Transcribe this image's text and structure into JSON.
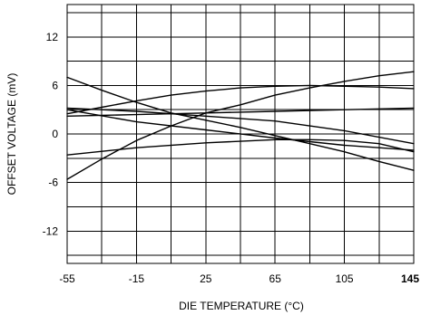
{
  "chart_data": {
    "type": "line",
    "xlabel": "DIE TEMPERATURE (°C)",
    "ylabel": "OFFSET VOLTAGE (mV)",
    "xlim": [
      -55,
      145
    ],
    "ylim": [
      -16,
      16
    ],
    "x_ticks": [
      "-55",
      "-15",
      "25",
      "65",
      "105",
      "145"
    ],
    "y_ticks": [
      "12",
      "6",
      "0",
      "-6",
      "-12"
    ],
    "grid": true,
    "series": [
      {
        "x": [
          -55,
          -35,
          -15,
          5,
          25,
          45,
          65,
          85,
          105,
          125,
          145
        ],
        "y": [
          -5.6,
          -3.1,
          -0.8,
          1.0,
          2.6,
          3.6,
          4.8,
          5.7,
          6.5,
          7.2,
          7.7
        ]
      },
      {
        "x": [
          -55,
          -35,
          -15,
          5,
          25,
          45,
          65,
          85,
          105,
          125,
          145
        ],
        "y": [
          2.5,
          3.3,
          4.1,
          4.8,
          5.3,
          5.7,
          5.9,
          6.0,
          5.9,
          5.8,
          5.6
        ]
      },
      {
        "x": [
          -55,
          -15,
          25,
          65,
          105,
          145
        ],
        "y": [
          2.2,
          2.4,
          2.6,
          2.8,
          3.0,
          3.2
        ]
      },
      {
        "x": [
          -55,
          -15,
          25,
          65,
          105,
          145
        ],
        "y": [
          3.2,
          2.8,
          2.2,
          1.6,
          0.4,
          -1.2
        ]
      },
      {
        "x": [
          -55,
          -35,
          -15,
          5,
          25,
          45,
          65,
          85,
          105,
          125,
          145
        ],
        "y": [
          7.0,
          5.4,
          3.9,
          2.6,
          1.7,
          0.8,
          -0.2,
          -1.2,
          -2.2,
          -3.4,
          -4.5
        ]
      },
      {
        "x": [
          -55,
          -15,
          25,
          65,
          85,
          105,
          125,
          145
        ],
        "y": [
          -2.6,
          -1.7,
          -1.1,
          -0.7,
          -0.7,
          -0.8,
          -1.2,
          -2.2
        ]
      },
      {
        "x": [
          -55,
          -15,
          25,
          65,
          105,
          145
        ],
        "y": [
          3.0,
          1.5,
          0.5,
          -0.5,
          -1.4,
          -2.0
        ]
      }
    ]
  }
}
